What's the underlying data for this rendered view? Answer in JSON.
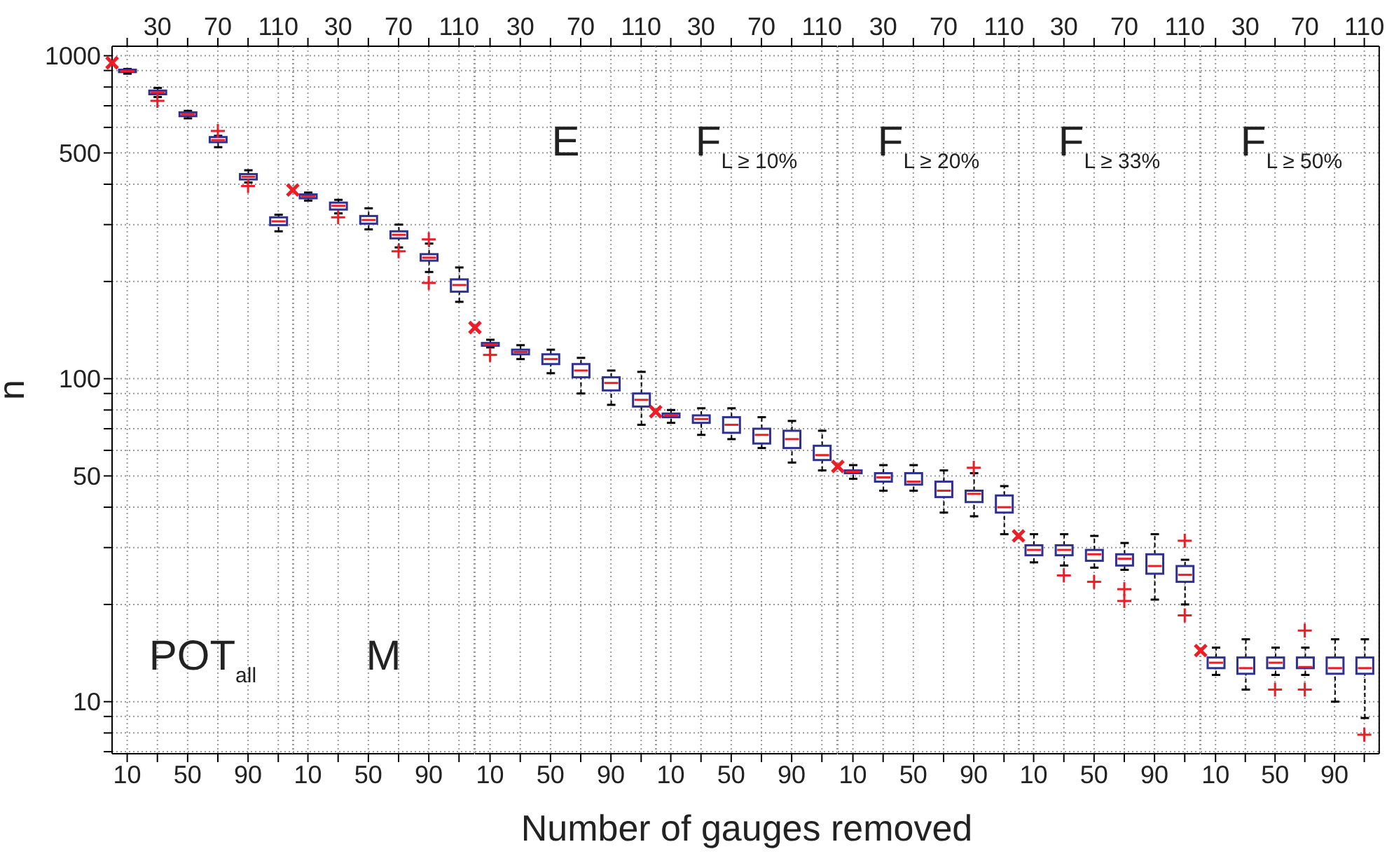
{
  "chart_data": [
    {
      "type": "box",
      "title": "POT$_{all}$",
      "ylabel": "n",
      "log": true,
      "grid": true,
      "xlim": [
        0,
        120
      ],
      "xticks": [
        10,
        {
          "value": 30,
          "label": null
        },
        50,
        {
          "value": 70,
          "label": null
        },
        90,
        {
          "value": 110,
          "label": null
        }
      ],
      "x2lim": [
        0,
        120
      ],
      "x2ticks": [
        {
          "value": 10,
          "label": null
        },
        30,
        {
          "value": 50,
          "label": null
        },
        70,
        {
          "value": 90,
          "label": null
        },
        110
      ],
      "ylim": [
        6.9,
        1070
      ],
      "yticks": [
        {
          "value": 7,
          "label": null
        },
        {
          "value": 8,
          "label": null
        },
        {
          "value": 9,
          "label": null
        },
        10,
        {
          "value": 20,
          "label": null
        },
        {
          "value": 30,
          "label": null
        },
        {
          "value": 40,
          "label": null
        },
        50,
        {
          "value": 60,
          "label": null
        },
        {
          "value": 70,
          "label": null
        },
        {
          "value": 80,
          "label": null
        },
        {
          "value": 90,
          "label": null
        },
        100,
        {
          "value": 200,
          "label": null
        },
        {
          "value": 300,
          "label": null
        },
        {
          "value": 400,
          "label": null
        },
        500,
        {
          "value": 600,
          "label": null
        },
        {
          "value": 700,
          "label": null
        },
        {
          "value": 800,
          "label": null
        },
        {
          "value": 900,
          "label": null
        },
        1000
      ],
      "series": [
        {
          "type": "box",
          "color": "#2e3192",
          "x": [
            10,
            30,
            50,
            70,
            90,
            110
          ],
          "boxes": [
            {
              "low": 880,
              "q1": 890,
              "median": 896,
              "q3": 905,
              "high": 910
            },
            {
              "low": 745,
              "q1": 760,
              "median": 770,
              "q3": 780,
              "high": 795,
              "outliers": [
                725
              ]
            },
            {
              "low": 640,
              "q1": 650,
              "median": 659,
              "q3": 668,
              "high": 675
            },
            {
              "low": 521,
              "q1": 540,
              "median": 548,
              "q3": 560,
              "high": 565,
              "outliers": [
                585
              ]
            },
            {
              "low": 405,
              "q1": 414,
              "median": 422,
              "q3": 430,
              "high": 442,
              "outliers": [
                395
              ]
            },
            {
              "low": 286,
              "q1": 299,
              "median": 307,
              "q3": 316,
              "high": 322
            }
          ]
        },
        {
          "type": "scatter",
          "color": "#ee1c25",
          "marker": "cross",
          "x": [
            0
          ],
          "values": [
            951
          ]
        }
      ]
    },
    {
      "type": "box",
      "title": "M",
      "tick_labels": "x",
      "log": true,
      "grid": true,
      "xlim": [
        0,
        120
      ],
      "xticks": [
        10,
        {
          "value": 30,
          "label": null
        },
        50,
        {
          "value": 70,
          "label": null
        },
        90,
        {
          "value": 110,
          "label": null
        }
      ],
      "x2lim": [
        0,
        120
      ],
      "x2ticks": [
        {
          "value": 10,
          "label": null
        },
        30,
        {
          "value": 50,
          "label": null
        },
        70,
        {
          "value": 90,
          "label": null
        },
        110
      ],
      "ylim": [
        6.9,
        1070
      ],
      "yticks": [
        {
          "value": 7,
          "label": null
        },
        {
          "value": 8,
          "label": null
        },
        {
          "value": 9,
          "label": null
        },
        10,
        {
          "value": 20,
          "label": null
        },
        {
          "value": 30,
          "label": null
        },
        {
          "value": 40,
          "label": null
        },
        50,
        {
          "value": 60,
          "label": null
        },
        {
          "value": 70,
          "label": null
        },
        {
          "value": 80,
          "label": null
        },
        {
          "value": 90,
          "label": null
        },
        100,
        {
          "value": 200,
          "label": null
        },
        {
          "value": 300,
          "label": null
        },
        {
          "value": 400,
          "label": null
        },
        500,
        {
          "value": 600,
          "label": null
        },
        {
          "value": 700,
          "label": null
        },
        {
          "value": 800,
          "label": null
        },
        {
          "value": 900,
          "label": null
        },
        1000
      ],
      "series": [
        {
          "type": "box",
          "color": "#2e3192",
          "x": [
            10,
            30,
            50,
            70,
            90,
            110
          ],
          "boxes": [
            {
              "low": 356,
              "q1": 362,
              "median": 367,
              "q3": 372,
              "high": 377
            },
            {
              "low": 325,
              "q1": 334,
              "median": 343,
              "q3": 351,
              "high": 358,
              "outliers": [
                316
              ]
            },
            {
              "low": 290,
              "q1": 302,
              "median": 310,
              "q3": 319,
              "high": 337
            },
            {
              "low": 255,
              "q1": 272,
              "median": 279,
              "q3": 286,
              "high": 300,
              "outliers": [
                248
              ]
            },
            {
              "low": 214,
              "q1": 232,
              "median": 237,
              "q3": 243,
              "high": 262,
              "outliers": [
                270,
                198
              ]
            },
            {
              "low": 173,
              "q1": 186,
              "median": 195,
              "q3": 203,
              "high": 221
            }
          ]
        },
        {
          "type": "scatter",
          "color": "#ee1c25",
          "marker": "cross",
          "x": [
            0
          ],
          "values": [
            384
          ]
        }
      ]
    },
    {
      "type": "box",
      "title": "E",
      "tick_labels": "x",
      "log": true,
      "grid": true,
      "xlim": [
        0,
        120
      ],
      "xticks": [
        10,
        {
          "value": 30,
          "label": null
        },
        50,
        {
          "value": 70,
          "label": null
        },
        90,
        {
          "value": 110,
          "label": null
        }
      ],
      "x2lim": [
        0,
        120
      ],
      "x2ticks": [
        {
          "value": 10,
          "label": null
        },
        30,
        {
          "value": 50,
          "label": null
        },
        70,
        {
          "value": 90,
          "label": null
        },
        110
      ],
      "ylim": [
        6.9,
        1070
      ],
      "yticks": [
        {
          "value": 7,
          "label": null
        },
        {
          "value": 8,
          "label": null
        },
        {
          "value": 9,
          "label": null
        },
        10,
        {
          "value": 20,
          "label": null
        },
        {
          "value": 30,
          "label": null
        },
        {
          "value": 40,
          "label": null
        },
        50,
        {
          "value": 60,
          "label": null
        },
        {
          "value": 70,
          "label": null
        },
        {
          "value": 80,
          "label": null
        },
        {
          "value": 90,
          "label": null
        },
        100,
        {
          "value": 200,
          "label": null
        },
        {
          "value": 300,
          "label": null
        },
        {
          "value": 400,
          "label": null
        },
        500,
        {
          "value": 600,
          "label": null
        },
        {
          "value": 700,
          "label": null
        },
        {
          "value": 800,
          "label": null
        },
        {
          "value": 900,
          "label": null
        },
        1000
      ],
      "series": [
        {
          "type": "box",
          "color": "#2e3192",
          "x": [
            10,
            30,
            50,
            70,
            90,
            110
          ],
          "boxes": [
            {
              "low": 125,
              "q1": 126.5,
              "median": 127.5,
              "q3": 129,
              "high": 132,
              "outliers": [
                118.5
              ]
            },
            {
              "low": 115,
              "q1": 119,
              "median": 121,
              "q3": 123,
              "high": 127
            },
            {
              "low": 104,
              "q1": 111,
              "median": 115,
              "q3": 119,
              "high": 123
            },
            {
              "low": 90,
              "q1": 101,
              "median": 106,
              "q3": 111,
              "high": 116
            },
            {
              "low": 83,
              "q1": 92,
              "median": 97,
              "q3": 101,
              "high": 106
            },
            {
              "low": 72,
              "q1": 82,
              "median": 86,
              "q3": 90,
              "high": 105
            }
          ]
        },
        {
          "type": "scatter",
          "color": "#ee1c25",
          "marker": "cross",
          "x": [
            0
          ],
          "values": [
            144
          ]
        }
      ]
    },
    {
      "type": "box",
      "title": "F$_{L ≥ 10%}$",
      "xlabel": "Number of gauges removed",
      "tick_labels": "x",
      "log": true,
      "grid": true,
      "xlim": [
        0,
        120
      ],
      "xticks": [
        10,
        {
          "value": 30,
          "label": null
        },
        50,
        {
          "value": 70,
          "label": null
        },
        90,
        {
          "value": 110,
          "label": null
        }
      ],
      "x2lim": [
        0,
        120
      ],
      "x2ticks": [
        {
          "value": 10,
          "label": null
        },
        30,
        {
          "value": 50,
          "label": null
        },
        70,
        {
          "value": 90,
          "label": null
        },
        110
      ],
      "ylim": [
        6.9,
        1070
      ],
      "yticks": [
        {
          "value": 7,
          "label": null
        },
        {
          "value": 8,
          "label": null
        },
        {
          "value": 9,
          "label": null
        },
        10,
        {
          "value": 20,
          "label": null
        },
        {
          "value": 30,
          "label": null
        },
        {
          "value": 40,
          "label": null
        },
        50,
        {
          "value": 60,
          "label": null
        },
        {
          "value": 70,
          "label": null
        },
        {
          "value": 80,
          "label": null
        },
        {
          "value": 90,
          "label": null
        },
        100,
        {
          "value": 200,
          "label": null
        },
        {
          "value": 300,
          "label": null
        },
        {
          "value": 400,
          "label": null
        },
        500,
        {
          "value": 600,
          "label": null
        },
        {
          "value": 700,
          "label": null
        },
        {
          "value": 800,
          "label": null
        },
        {
          "value": 900,
          "label": null
        },
        1000
      ],
      "series": [
        {
          "type": "box",
          "color": "#2e3192",
          "x": [
            10,
            30,
            50,
            70,
            90,
            110
          ],
          "boxes": [
            {
              "low": 73,
              "q1": 76,
              "median": 77,
              "q3": 78,
              "high": 80
            },
            {
              "low": 67,
              "q1": 73,
              "median": 75,
              "q3": 77,
              "high": 81
            },
            {
              "low": 65,
              "q1": 68,
              "median": 72,
              "q3": 76,
              "high": 81
            },
            {
              "low": 61,
              "q1": 63,
              "median": 67,
              "q3": 70,
              "high": 76
            },
            {
              "low": 55,
              "q1": 61,
              "median": 65,
              "q3": 69,
              "high": 74
            },
            {
              "low": 52,
              "q1": 56,
              "median": 58,
              "q3": 62,
              "high": 69
            }
          ]
        },
        {
          "type": "scatter",
          "color": "#ee1c25",
          "marker": "cross",
          "x": [
            0
          ],
          "values": [
            79
          ]
        }
      ]
    },
    {
      "type": "box",
      "title": "F$_{L ≥ 20%}$",
      "tick_labels": "x",
      "log": true,
      "grid": true,
      "xlim": [
        0,
        120
      ],
      "xticks": [
        10,
        {
          "value": 30,
          "label": null
        },
        50,
        {
          "value": 70,
          "label": null
        },
        90,
        {
          "value": 110,
          "label": null
        }
      ],
      "x2lim": [
        0,
        120
      ],
      "x2ticks": [
        {
          "value": 10,
          "label": null
        },
        30,
        {
          "value": 50,
          "label": null
        },
        70,
        {
          "value": 90,
          "label": null
        },
        110
      ],
      "ylim": [
        6.9,
        1070
      ],
      "yticks": [
        {
          "value": 7,
          "label": null
        },
        {
          "value": 8,
          "label": null
        },
        {
          "value": 9,
          "label": null
        },
        10,
        {
          "value": 20,
          "label": null
        },
        {
          "value": 30,
          "label": null
        },
        {
          "value": 40,
          "label": null
        },
        50,
        {
          "value": 60,
          "label": null
        },
        {
          "value": 70,
          "label": null
        },
        {
          "value": 80,
          "label": null
        },
        {
          "value": 90,
          "label": null
        },
        100,
        {
          "value": 200,
          "label": null
        },
        {
          "value": 300,
          "label": null
        },
        {
          "value": 400,
          "label": null
        },
        500,
        {
          "value": 600,
          "label": null
        },
        {
          "value": 700,
          "label": null
        },
        {
          "value": 800,
          "label": null
        },
        {
          "value": 900,
          "label": null
        },
        1000
      ],
      "series": [
        {
          "type": "box",
          "color": "#2e3192",
          "x": [
            10,
            30,
            50,
            70,
            90,
            110
          ],
          "boxes": [
            {
              "low": 49,
              "q1": 51,
              "median": 51.5,
              "q3": 52,
              "high": 54
            },
            {
              "low": 45,
              "q1": 48,
              "median": 49.5,
              "q3": 51,
              "high": 54
            },
            {
              "low": 45,
              "q1": 47,
              "median": 48,
              "q3": 51,
              "high": 54
            },
            {
              "low": 38.5,
              "q1": 43,
              "median": 45,
              "q3": 48,
              "high": 52
            },
            {
              "low": 37.5,
              "q1": 41.5,
              "median": 44,
              "q3": 45,
              "high": 51,
              "outliers": [
                53
              ]
            },
            {
              "low": 33,
              "q1": 38.5,
              "median": 40,
              "q3": 43.5,
              "high": 46.5
            }
          ]
        },
        {
          "type": "scatter",
          "color": "#ee1c25",
          "marker": "cross",
          "x": [
            0
          ],
          "values": [
            53.5
          ]
        }
      ]
    },
    {
      "type": "box",
      "title": "F$_{L ≥ 33%}$",
      "tick_labels": "x",
      "log": true,
      "grid": true,
      "xlim": [
        0,
        120
      ],
      "xticks": [
        10,
        {
          "value": 30,
          "label": null
        },
        50,
        {
          "value": 70,
          "label": null
        },
        90,
        {
          "value": 110,
          "label": null
        }
      ],
      "x2lim": [
        0,
        120
      ],
      "x2ticks": [
        {
          "value": 10,
          "label": null
        },
        30,
        {
          "value": 50,
          "label": null
        },
        70,
        {
          "value": 90,
          "label": null
        },
        110
      ],
      "ylim": [
        6.9,
        1070
      ],
      "yticks": [
        {
          "value": 7,
          "label": null
        },
        {
          "value": 8,
          "label": null
        },
        {
          "value": 9,
          "label": null
        },
        10,
        {
          "value": 20,
          "label": null
        },
        {
          "value": 30,
          "label": null
        },
        {
          "value": 40,
          "label": null
        },
        50,
        {
          "value": 60,
          "label": null
        },
        {
          "value": 70,
          "label": null
        },
        {
          "value": 80,
          "label": null
        },
        {
          "value": 90,
          "label": null
        },
        100,
        {
          "value": 200,
          "label": null
        },
        {
          "value": 300,
          "label": null
        },
        {
          "value": 400,
          "label": null
        },
        500,
        {
          "value": 600,
          "label": null
        },
        {
          "value": 700,
          "label": null
        },
        {
          "value": 800,
          "label": null
        },
        {
          "value": 900,
          "label": null
        },
        1000
      ],
      "series": [
        {
          "type": "box",
          "color": "#2e3192",
          "x": [
            10,
            30,
            50,
            70,
            90,
            110
          ],
          "boxes": [
            {
              "low": 27,
              "q1": 28.4,
              "median": 29.5,
              "q3": 30.5,
              "high": 33
            },
            {
              "low": 26.4,
              "q1": 28.4,
              "median": 29.5,
              "q3": 30.5,
              "high": 33,
              "outliers": [
                24.6
              ]
            },
            {
              "low": 26,
              "q1": 27.3,
              "median": 28.6,
              "q3": 29.5,
              "high": 32.6,
              "outliers": [
                23.5
              ]
            },
            {
              "low": 25.6,
              "q1": 26.4,
              "median": 27.7,
              "q3": 28.6,
              "high": 31,
              "outliers": [
                22.3,
                20.5
              ]
            },
            {
              "low": 20.7,
              "q1": 24.9,
              "median": 26.3,
              "q3": 28.6,
              "high": 33
            },
            {
              "low": 20,
              "q1": 23.5,
              "median": 24.7,
              "q3": 26.3,
              "high": 27.5,
              "outliers": [
                31.5,
                18.5
              ]
            }
          ]
        },
        {
          "type": "scatter",
          "color": "#ee1c25",
          "marker": "cross",
          "x": [
            0
          ],
          "values": [
            32.6
          ]
        }
      ]
    },
    {
      "type": "box",
      "title": "F$_{L ≥ 50%}$",
      "tick_labels": "x",
      "log": true,
      "grid": true,
      "xlim": [
        0,
        120
      ],
      "xticks": [
        10,
        {
          "value": 30,
          "label": null
        },
        50,
        {
          "value": 70,
          "label": null
        },
        90,
        {
          "value": 110,
          "label": null
        }
      ],
      "x2lim": [
        0,
        120
      ],
      "x2ticks": [
        {
          "value": 10,
          "label": null
        },
        30,
        {
          "value": 50,
          "label": null
        },
        70,
        {
          "value": 90,
          "label": null
        },
        110
      ],
      "ylim": [
        6.9,
        1070
      ],
      "yticks": [
        {
          "value": 7,
          "label": null
        },
        {
          "value": 8,
          "label": null
        },
        {
          "value": 9,
          "label": null
        },
        10,
        {
          "value": 20,
          "label": null
        },
        {
          "value": 30,
          "label": null
        },
        {
          "value": 40,
          "label": null
        },
        50,
        {
          "value": 60,
          "label": null
        },
        {
          "value": 70,
          "label": null
        },
        {
          "value": 80,
          "label": null
        },
        {
          "value": 90,
          "label": null
        },
        100,
        {
          "value": 200,
          "label": null
        },
        {
          "value": 300,
          "label": null
        },
        {
          "value": 400,
          "label": null
        },
        500,
        {
          "value": 600,
          "label": null
        },
        {
          "value": 700,
          "label": null
        },
        {
          "value": 800,
          "label": null
        },
        {
          "value": 900,
          "label": null
        },
        1000
      ],
      "series": [
        {
          "type": "box",
          "color": "#2e3192",
          "x": [
            10,
            30,
            50,
            70,
            90,
            110
          ],
          "boxes": [
            {
              "low": 12.1,
              "q1": 12.7,
              "median": 13.2,
              "q3": 13.7,
              "high": 14.7
            },
            {
              "low": 10.9,
              "q1": 12.2,
              "median": 12.7,
              "q3": 13.7,
              "high": 15.6
            },
            {
              "low": 12.1,
              "q1": 12.7,
              "median": 13.2,
              "q3": 13.7,
              "high": 14.7,
              "outliers": [
                10.9
              ]
            },
            {
              "low": 12.1,
              "q1": 12.7,
              "median": 12.8,
              "q3": 13.7,
              "high": 14.7,
              "outliers": [
                16.6,
                10.9
              ]
            },
            {
              "low": 10,
              "q1": 12.2,
              "median": 12.7,
              "q3": 13.7,
              "high": 15.6
            },
            {
              "low": 8.9,
              "q1": 12.2,
              "median": 12.7,
              "q3": 13.7,
              "high": 15.6,
              "outliers": [
                7.9
              ]
            }
          ]
        },
        {
          "type": "scatter",
          "color": "#ee1c25",
          "marker": "cross",
          "x": [
            0
          ],
          "values": [
            14.4
          ]
        }
      ]
    }
  ]
}
